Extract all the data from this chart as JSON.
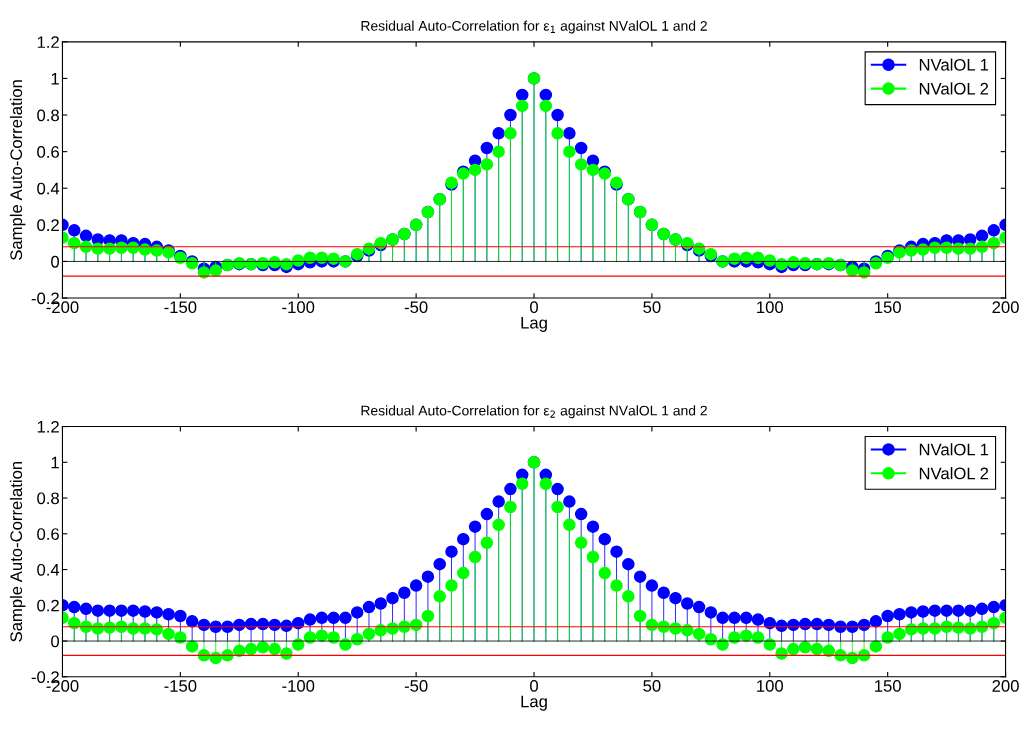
{
  "chart_data": [
    {
      "type": "lollipop",
      "title": "Residual Auto-Correlation for ε$_{1}$ against NValOL 1 and 2",
      "xlabel": "Lag",
      "ylabel": "Sample Auto-Correlation",
      "x": [
        -200,
        -195,
        -190,
        -185,
        -180,
        -175,
        -170,
        -165,
        -160,
        -155,
        -150,
        -145,
        -140,
        -135,
        -130,
        -125,
        -120,
        -115,
        -110,
        -105,
        -100,
        -95,
        -90,
        -85,
        -80,
        -75,
        -70,
        -65,
        -60,
        -55,
        -50,
        -45,
        -40,
        -35,
        -30,
        -25,
        -20,
        -15,
        -10,
        -5,
        0,
        5,
        10,
        15,
        20,
        25,
        30,
        35,
        40,
        45,
        50,
        55,
        60,
        65,
        70,
        75,
        80,
        85,
        90,
        95,
        100,
        105,
        110,
        115,
        120,
        125,
        130,
        135,
        140,
        145,
        150,
        155,
        160,
        165,
        170,
        175,
        180,
        185,
        190,
        195,
        200
      ],
      "series": [
        {
          "name": "NValOL 1",
          "color": "#0000ff",
          "values": [
            0.2,
            0.17,
            0.14,
            0.12,
            0.115,
            0.115,
            0.1,
            0.095,
            0.08,
            0.06,
            0.03,
            0.0,
            -0.04,
            -0.03,
            -0.02,
            -0.015,
            -0.015,
            -0.02,
            -0.02,
            -0.03,
            -0.015,
            -0.005,
            0.0,
            0.0,
            0.0,
            0.03,
            0.06,
            0.09,
            0.12,
            0.15,
            0.2,
            0.27,
            0.34,
            0.42,
            0.49,
            0.55,
            0.62,
            0.7,
            0.8,
            0.91,
            1.0,
            0.91,
            0.8,
            0.7,
            0.62,
            0.55,
            0.49,
            0.42,
            0.34,
            0.27,
            0.2,
            0.15,
            0.12,
            0.09,
            0.06,
            0.03,
            0.0,
            0.0,
            0.0,
            -0.005,
            -0.015,
            -0.03,
            -0.02,
            -0.02,
            -0.015,
            -0.015,
            -0.02,
            -0.03,
            -0.04,
            0.0,
            0.03,
            0.06,
            0.08,
            0.095,
            0.1,
            0.115,
            0.115,
            0.12,
            0.14,
            0.17,
            0.2
          ]
        },
        {
          "name": "NValOL 2",
          "color": "#00ff00",
          "values": [
            0.13,
            0.1,
            0.08,
            0.07,
            0.07,
            0.075,
            0.075,
            0.065,
            0.06,
            0.05,
            0.02,
            -0.01,
            -0.06,
            -0.05,
            -0.02,
            -0.01,
            -0.015,
            -0.01,
            -0.005,
            -0.015,
            0.005,
            0.02,
            0.02,
            0.015,
            0.0,
            0.04,
            0.07,
            0.1,
            0.12,
            0.15,
            0.2,
            0.27,
            0.34,
            0.43,
            0.48,
            0.5,
            0.53,
            0.6,
            0.7,
            0.85,
            1.0,
            0.85,
            0.7,
            0.6,
            0.53,
            0.5,
            0.48,
            0.43,
            0.34,
            0.27,
            0.2,
            0.15,
            0.12,
            0.1,
            0.07,
            0.04,
            0.0,
            0.015,
            0.02,
            0.02,
            0.005,
            -0.015,
            -0.005,
            -0.01,
            -0.015,
            -0.01,
            -0.02,
            -0.05,
            -0.06,
            -0.01,
            0.02,
            0.05,
            0.06,
            0.065,
            0.075,
            0.075,
            0.07,
            0.07,
            0.08,
            0.1,
            0.13
          ]
        }
      ],
      "ref_lines": [
        {
          "axis": "y",
          "value": 0.08,
          "color": "#ff0000"
        },
        {
          "axis": "y",
          "value": -0.08,
          "color": "#ff0000"
        }
      ],
      "xlim": [
        -200,
        200
      ],
      "xticks": [
        -200,
        -150,
        -100,
        -50,
        0,
        50,
        100,
        150,
        200
      ],
      "ylim": [
        -0.2,
        1.2
      ],
      "yticks": [
        -0.2,
        0,
        0.2,
        0.4,
        0.6,
        0.8,
        1,
        1.2
      ],
      "marker": "circle",
      "legend": "top right",
      "grid": false
    },
    {
      "type": "lollipop",
      "title": "Residual Auto-Correlation for ε$_{2}$ against NValOL 1 and 2",
      "xlabel": "Lag",
      "ylabel": "Sample Auto-Correlation",
      "x": [
        -200,
        -195,
        -190,
        -185,
        -180,
        -175,
        -170,
        -165,
        -160,
        -155,
        -150,
        -145,
        -140,
        -135,
        -130,
        -125,
        -120,
        -115,
        -110,
        -105,
        -100,
        -95,
        -90,
        -85,
        -80,
        -75,
        -70,
        -65,
        -60,
        -55,
        -50,
        -45,
        -40,
        -35,
        -30,
        -25,
        -20,
        -15,
        -10,
        -5,
        0,
        5,
        10,
        15,
        20,
        25,
        30,
        35,
        40,
        45,
        50,
        55,
        60,
        65,
        70,
        75,
        80,
        85,
        90,
        95,
        100,
        105,
        110,
        115,
        120,
        125,
        130,
        135,
        140,
        145,
        150,
        155,
        160,
        165,
        170,
        175,
        180,
        185,
        190,
        195,
        200
      ],
      "series": [
        {
          "name": "NValOL 1",
          "color": "#0000ff",
          "values": [
            0.2,
            0.19,
            0.18,
            0.17,
            0.17,
            0.17,
            0.17,
            0.165,
            0.16,
            0.15,
            0.14,
            0.11,
            0.09,
            0.08,
            0.08,
            0.09,
            0.095,
            0.095,
            0.09,
            0.085,
            0.1,
            0.12,
            0.13,
            0.13,
            0.13,
            0.16,
            0.19,
            0.21,
            0.24,
            0.27,
            0.31,
            0.36,
            0.43,
            0.5,
            0.57,
            0.64,
            0.71,
            0.78,
            0.85,
            0.93,
            1.0,
            0.93,
            0.85,
            0.78,
            0.71,
            0.64,
            0.57,
            0.5,
            0.43,
            0.36,
            0.31,
            0.27,
            0.24,
            0.21,
            0.19,
            0.16,
            0.13,
            0.13,
            0.13,
            0.12,
            0.1,
            0.085,
            0.09,
            0.095,
            0.095,
            0.09,
            0.08,
            0.08,
            0.09,
            0.11,
            0.14,
            0.15,
            0.16,
            0.165,
            0.17,
            0.17,
            0.17,
            0.17,
            0.18,
            0.19,
            0.2
          ]
        },
        {
          "name": "NValOL 2",
          "color": "#00ff00",
          "values": [
            0.13,
            0.1,
            0.08,
            0.07,
            0.075,
            0.08,
            0.07,
            0.07,
            0.065,
            0.04,
            0.02,
            -0.03,
            -0.08,
            -0.095,
            -0.08,
            -0.055,
            -0.045,
            -0.035,
            -0.045,
            -0.07,
            -0.02,
            0.02,
            0.03,
            0.02,
            -0.02,
            0.01,
            0.04,
            0.06,
            0.07,
            0.08,
            0.09,
            0.14,
            0.25,
            0.31,
            0.38,
            0.47,
            0.55,
            0.65,
            0.75,
            0.88,
            1.0,
            0.88,
            0.75,
            0.65,
            0.55,
            0.47,
            0.38,
            0.31,
            0.25,
            0.14,
            0.09,
            0.08,
            0.07,
            0.06,
            0.04,
            0.01,
            -0.02,
            0.02,
            0.03,
            0.02,
            -0.02,
            -0.07,
            -0.045,
            -0.035,
            -0.045,
            -0.055,
            -0.08,
            -0.095,
            -0.08,
            -0.03,
            0.02,
            0.04,
            0.065,
            0.07,
            0.07,
            0.08,
            0.075,
            0.07,
            0.08,
            0.1,
            0.13
          ]
        }
      ],
      "ref_lines": [
        {
          "axis": "y",
          "value": 0.08,
          "color": "#ff0000"
        },
        {
          "axis": "y",
          "value": -0.08,
          "color": "#ff0000"
        }
      ],
      "xlim": [
        -200,
        200
      ],
      "xticks": [
        -200,
        -150,
        -100,
        -50,
        0,
        50,
        100,
        150,
        200
      ],
      "ylim": [
        -0.2,
        1.2
      ],
      "yticks": [
        -0.2,
        0,
        0.2,
        0.4,
        0.6,
        0.8,
        1,
        1.2
      ],
      "marker": "circle",
      "legend": "top right",
      "grid": false
    }
  ]
}
